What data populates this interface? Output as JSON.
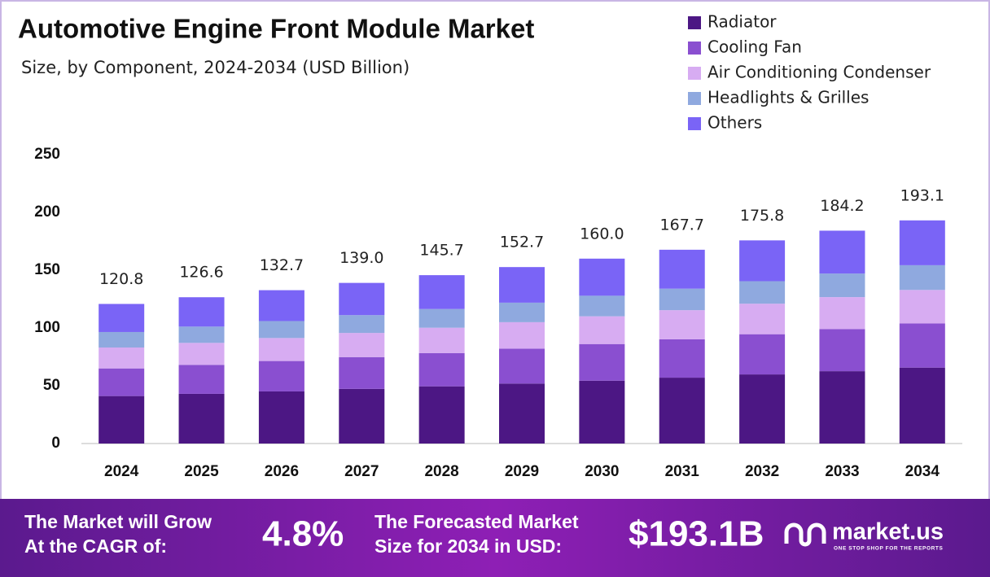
{
  "chart_data": {
    "type": "stacked_bar",
    "title": "Automotive Engine Front Module Market",
    "subtitle": "Size, by Component, 2024-2034 (USD Billion)",
    "categories": [
      "2024",
      "2025",
      "2026",
      "2027",
      "2028",
      "2029",
      "2030",
      "2031",
      "2032",
      "2033",
      "2034"
    ],
    "series": [
      {
        "name": "Radiator",
        "color": "#4c1784",
        "values": [
          41.1,
          43.0,
          45.1,
          47.3,
          49.5,
          51.9,
          54.4,
          57.0,
          59.8,
          62.6,
          65.7
        ]
      },
      {
        "name": "Cooling Fan",
        "color": "#8a4fd0",
        "values": [
          23.9,
          25.1,
          26.3,
          27.5,
          28.8,
          30.2,
          31.7,
          33.2,
          34.8,
          36.5,
          38.2
        ]
      },
      {
        "name": "Air Conditioning Condenser",
        "color": "#d7acf2",
        "values": [
          18.1,
          19.0,
          19.9,
          20.9,
          21.9,
          22.9,
          24.0,
          25.2,
          26.4,
          27.6,
          29.0
        ]
      },
      {
        "name": "Headlights & Grilles",
        "color": "#8fa9df",
        "values": [
          13.4,
          14.1,
          14.7,
          15.4,
          16.2,
          16.9,
          17.8,
          18.6,
          19.5,
          20.4,
          21.4
        ]
      },
      {
        "name": "Others",
        "color": "#7a64f6",
        "values": [
          24.3,
          25.4,
          26.7,
          27.9,
          29.3,
          30.8,
          32.1,
          33.7,
          35.3,
          37.1,
          38.8
        ]
      }
    ],
    "totals": [
      120.8,
      126.6,
      132.7,
      139.0,
      145.7,
      152.7,
      160.0,
      167.7,
      175.8,
      184.2,
      193.1
    ],
    "total_labels": [
      "120.8",
      "126.6",
      "132.7",
      "139.0",
      "145.7",
      "152.7",
      "160.0",
      "167.7",
      "175.8",
      "184.2",
      "193.1"
    ],
    "ylim": [
      0,
      250
    ],
    "yticks": [
      0,
      50,
      100,
      150,
      200,
      250
    ],
    "grid": false,
    "legend": "top-right"
  },
  "footer": {
    "cagr_text_1": "The Market will Grow",
    "cagr_text_2": "At the CAGR of:",
    "cagr": "4.8%",
    "forecast_text_1": "The Forecasted Market",
    "forecast_text_2": "Size for 2034 in USD:",
    "forecast": "$193.1B",
    "brand": "market.us",
    "tagline": "ONE STOP SHOP FOR THE REPORTS"
  }
}
